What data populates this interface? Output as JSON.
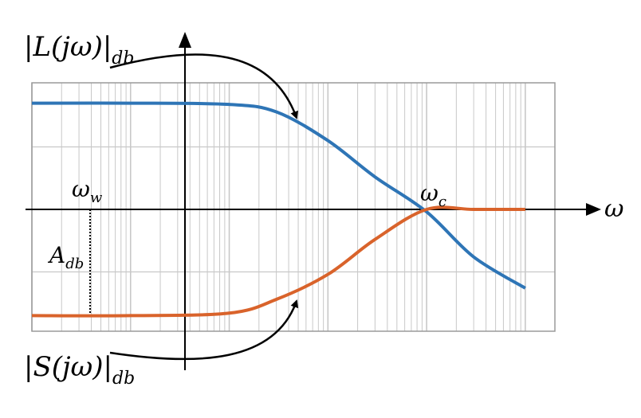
{
  "chart_data": {
    "type": "line",
    "title": "",
    "xlabel": "ω",
    "ylabel": "",
    "xscale": "log",
    "grid": true,
    "colors": {
      "L": "#2e75b6",
      "S": "#d9632b",
      "grid": "#c8c8c8",
      "axis": "#000000"
    },
    "series": [
      {
        "name": "|L(jω)|db",
        "key": "L",
        "x": [
          0.0001,
          0.001,
          0.01,
          0.03,
          0.1,
          0.3,
          1,
          3,
          10
        ],
        "values": [
          0.85,
          0.85,
          0.84,
          0.78,
          0.55,
          0.26,
          -0.02,
          -0.38,
          -0.63
        ]
      },
      {
        "name": "|S(jω)|db",
        "key": "S",
        "x": [
          0.0001,
          0.001,
          0.01,
          0.03,
          0.1,
          0.3,
          1,
          3,
          10
        ],
        "values": [
          -0.85,
          -0.85,
          -0.83,
          -0.72,
          -0.52,
          -0.24,
          0.0,
          0.0,
          0.0
        ]
      }
    ],
    "annotations": {
      "L_label": {
        "base": "|L(jω)|",
        "sub": "db"
      },
      "S_label": {
        "base": "|S(jω)|",
        "sub": "db"
      },
      "omega_c": {
        "base": "ω",
        "sub": "c"
      },
      "omega_w": {
        "base": "ω",
        "sub": "w"
      },
      "A_db": {
        "base": "A",
        "sub": "db"
      }
    }
  }
}
